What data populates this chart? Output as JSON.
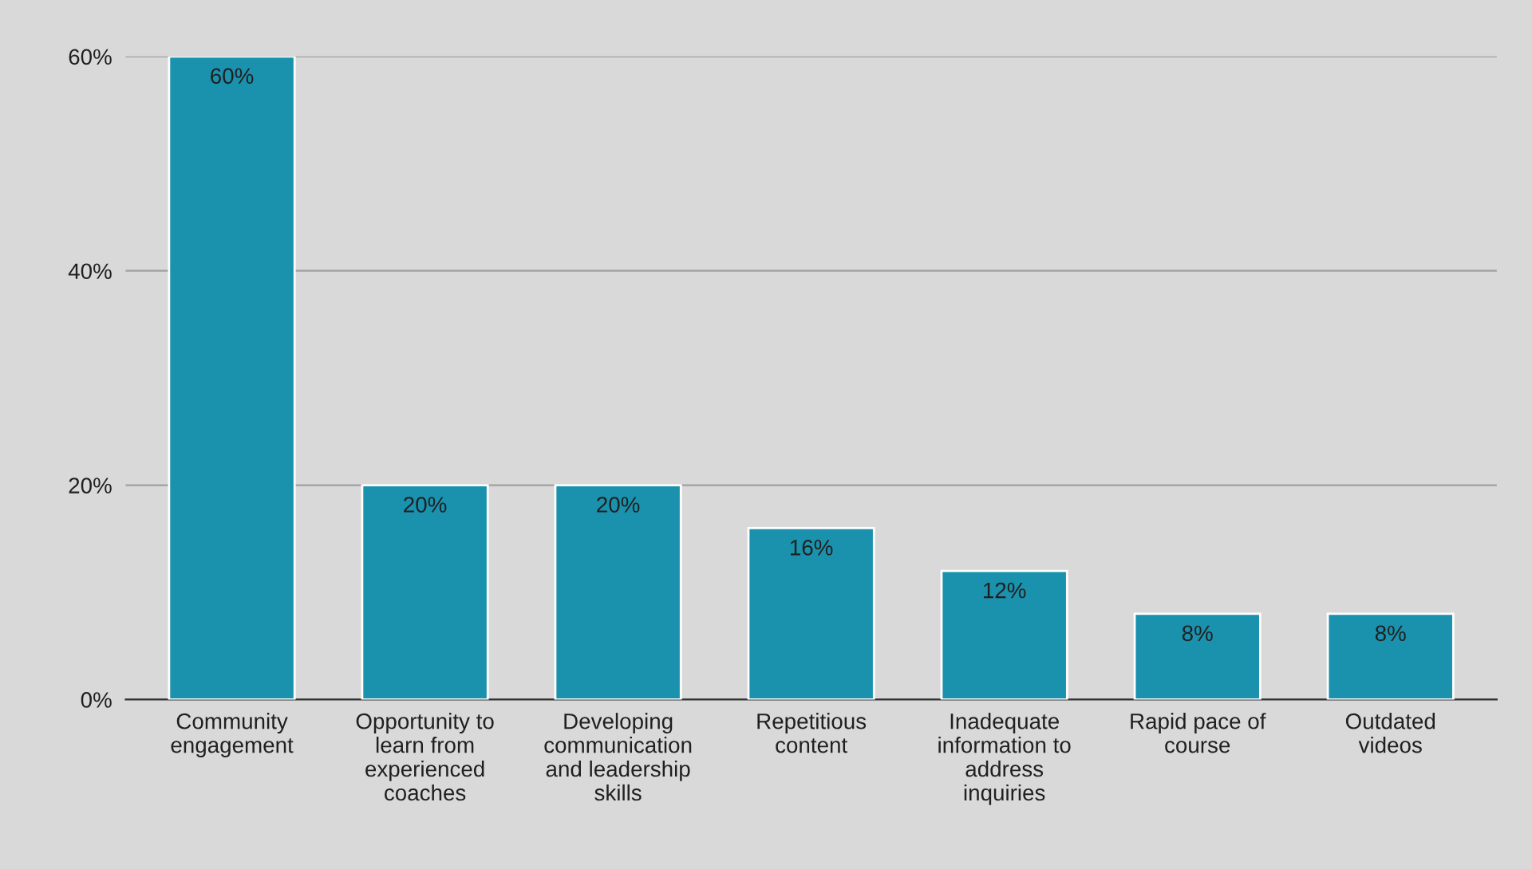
{
  "chart_data": {
    "type": "bar",
    "categories": [
      "Community\nengagement",
      "Opportunity to\nlearn from\nexperienced\ncoaches",
      "Developing\ncommunication\nand leadership\nskills",
      "Repetitious\ncontent",
      "Inadequate\ninformation to\naddress\ninquiries",
      "Rapid pace of\ncourse",
      "Outdated\nvideos"
    ],
    "values": [
      60,
      20,
      20,
      16,
      12,
      8,
      8
    ],
    "value_labels": [
      "60%",
      "20%",
      "20%",
      "16%",
      "12%",
      "8%",
      "8%"
    ],
    "color": "#1a91ad",
    "ylim": [
      0,
      60
    ],
    "yticks": [
      {
        "value": 0,
        "label": "0%"
      },
      {
        "value": 20,
        "label": "20%"
      },
      {
        "value": 40,
        "label": "40%"
      },
      {
        "value": 60,
        "label": "60%"
      }
    ],
    "grid": "y",
    "legend": false
  }
}
